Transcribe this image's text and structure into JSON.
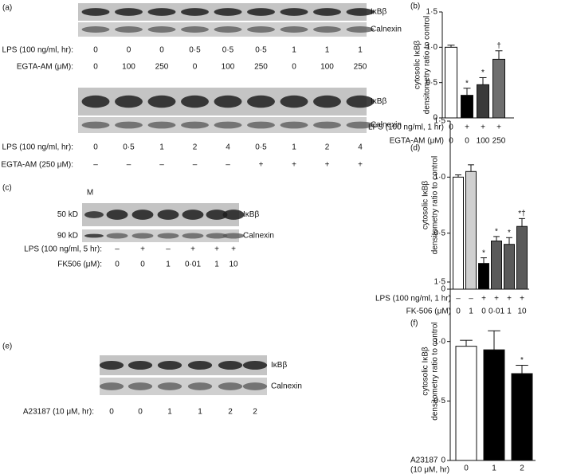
{
  "blots": [
    {
      "panel": "(a)",
      "bands": [
        "IκBβ",
        "Calnexin"
      ],
      "rows": [
        {
          "label": "LPS (100 ng/ml, hr):",
          "values": [
            "0",
            "0",
            "0",
            "0·5",
            "0·5",
            "0·5",
            "1",
            "1",
            "1"
          ]
        },
        {
          "label": "EGTA-AM (μM):",
          "values": [
            "0",
            "100",
            "250",
            "0",
            "100",
            "250",
            "0",
            "100",
            "250"
          ]
        }
      ]
    },
    {
      "bands": [
        "IκBβ",
        "Calnexin"
      ],
      "rows": [
        {
          "label": "LPS (100 ng/ml, hr):",
          "values": [
            "0",
            "0·5",
            "1",
            "2",
            "4",
            "0·5",
            "1",
            "2",
            "4"
          ]
        },
        {
          "label": "EGTA-AM (250 μM):",
          "values": [
            "–",
            "–",
            "–",
            "–",
            "–",
            "+",
            "+",
            "+",
            "+"
          ]
        }
      ]
    },
    {
      "panel": "(c)",
      "marker": "M",
      "sizes": [
        "50 kD",
        "90 kD"
      ],
      "bands": [
        "IκBβ",
        "Calnexin"
      ],
      "rows": [
        {
          "label": "LPS (100 ng/ml, 5 hr):",
          "values": [
            "–",
            "+",
            "–",
            "+",
            "+",
            "+"
          ]
        },
        {
          "label": "FK506 (μM):",
          "values": [
            "0",
            "0",
            "1",
            "0·01",
            "1",
            "10"
          ]
        }
      ]
    },
    {
      "panel": "(e)",
      "bands": [
        "IκBβ",
        "Calnexin"
      ],
      "rows": [
        {
          "label": "A23187 (10 μM, hr):",
          "values": [
            "0",
            "0",
            "1",
            "1",
            "2",
            "2"
          ]
        }
      ]
    }
  ],
  "chart_data": [
    {
      "type": "bar",
      "panel": "(b)",
      "ylabel": [
        "cytosolic IκBβ",
        "densitometry ratio to control"
      ],
      "ylim": [
        0,
        1.5
      ],
      "yticks": [
        0,
        {
          "value": 0.5,
          "label": "0·5"
        },
        {
          "value": 1,
          "label": "1·0"
        },
        {
          "value": 1.5,
          "label": "1·5"
        }
      ],
      "values": [
        1.0,
        0.32,
        0.47,
        0.83
      ],
      "errors": [
        0.03,
        0.1,
        0.1,
        0.12
      ],
      "colors": [
        "#ffffff",
        "#000000",
        "#3a3a3a",
        "#6e6e6e"
      ],
      "annotations": [
        null,
        "*",
        "*",
        "†"
      ],
      "xrows": [
        {
          "label": "LPS (100 ng/ml, 1 hr)",
          "values": [
            "0",
            "+",
            "+",
            "+"
          ]
        },
        {
          "label": "EGTA-AM (μM)",
          "values": [
            "0",
            "0",
            "100",
            "250"
          ]
        }
      ]
    },
    {
      "type": "bar",
      "panel": "(d)",
      "ylabel": [
        "cytosolic IκBβ",
        "densitometry ratio to control"
      ],
      "ylim": [
        0,
        1.5
      ],
      "yticks": [
        0,
        {
          "value": 0.5,
          "label": "0·5"
        },
        {
          "value": 1,
          "label": "1·0"
        },
        {
          "value": 1.5,
          "label": "1·5"
        }
      ],
      "values": [
        1.0,
        1.05,
        0.23,
        0.43,
        0.4,
        0.56
      ],
      "errors": [
        0.02,
        0.06,
        0.05,
        0.04,
        0.06,
        0.07
      ],
      "colors": [
        "#ffffff",
        "#d0d0d0",
        "#000000",
        "#5a5a5a",
        "#5a5a5a",
        "#5a5a5a"
      ],
      "annotations": [
        null,
        null,
        "*",
        "*",
        "*",
        "*†"
      ],
      "xrows": [
        {
          "label": "LPS (100 ng/ml, 1 hr)",
          "values": [
            "–",
            "–",
            "+",
            "+",
            "+",
            "+"
          ]
        },
        {
          "label": "FK-506 (μM)",
          "values": [
            "0",
            "1",
            "0",
            "0·01",
            "1",
            "10"
          ]
        }
      ]
    },
    {
      "type": "bar",
      "panel": "(f)",
      "ylabel": [
        "cytosolic IκBβ",
        "densitometry ratio to control"
      ],
      "ylim": [
        0,
        1.5
      ],
      "yticks": [
        0,
        {
          "value": 0.5,
          "label": "0·5"
        },
        {
          "value": 1,
          "label": "1·0"
        },
        {
          "value": 1.5,
          "label": "1·5"
        }
      ],
      "values": [
        0.96,
        0.93,
        0.73
      ],
      "errors": [
        0.05,
        0.16,
        0.07
      ],
      "colors": [
        "#ffffff",
        "#000000",
        "#000000"
      ],
      "annotations": [
        null,
        null,
        "*"
      ],
      "xrows": [
        {
          "label": [
            "A23187",
            "(10 μM, hr)"
          ],
          "values": [
            "0",
            "1",
            "2"
          ]
        }
      ]
    }
  ]
}
